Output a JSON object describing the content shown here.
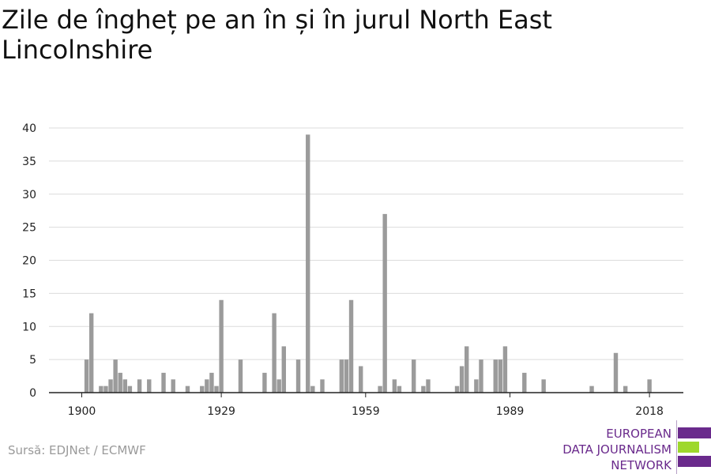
{
  "title": "Zile de îngheț pe an în și în jurul North East Lincolnshire",
  "source": "Sursă: EDJNet / ECMWF",
  "logo": {
    "lines": [
      "EUROPEAN",
      "DATA JOURNALISM",
      "NETWORK"
    ],
    "colors": {
      "purple": "#6a2a8c",
      "green": "#9ed82c"
    }
  },
  "chart_data": {
    "type": "bar",
    "bar_color": "#9b9b9b",
    "xlim": [
      1900,
      2019
    ],
    "ylim": [
      0,
      40
    ],
    "y_ticks": [
      0,
      5,
      10,
      15,
      20,
      25,
      30,
      35,
      40
    ],
    "x_ticks": [
      1900,
      1929,
      1959,
      1989,
      2018
    ],
    "grid": true,
    "x": [
      1901,
      1902,
      1904,
      1905,
      1906,
      1907,
      1908,
      1909,
      1910,
      1912,
      1914,
      1917,
      1919,
      1922,
      1925,
      1926,
      1927,
      1928,
      1929,
      1933,
      1938,
      1940,
      1941,
      1942,
      1945,
      1947,
      1948,
      1950,
      1954,
      1955,
      1956,
      1958,
      1962,
      1963,
      1965,
      1966,
      1969,
      1971,
      1972,
      1978,
      1979,
      1980,
      1982,
      1983,
      1986,
      1987,
      1988,
      1992,
      1996,
      2006,
      2011,
      2013,
      2018
    ],
    "values": [
      5,
      12,
      1,
      1,
      2,
      5,
      3,
      2,
      1,
      2,
      2,
      3,
      2,
      1,
      1,
      2,
      3,
      1,
      14,
      5,
      3,
      12,
      2,
      7,
      5,
      39,
      1,
      2,
      5,
      5,
      14,
      4,
      1,
      27,
      2,
      1,
      5,
      1,
      2,
      1,
      4,
      7,
      2,
      5,
      5,
      5,
      7,
      3,
      2,
      1,
      6,
      1,
      2
    ],
    "title": "Zile de îngheț pe an în și în jurul North East Lincolnshire",
    "xlabel": "",
    "ylabel": ""
  }
}
